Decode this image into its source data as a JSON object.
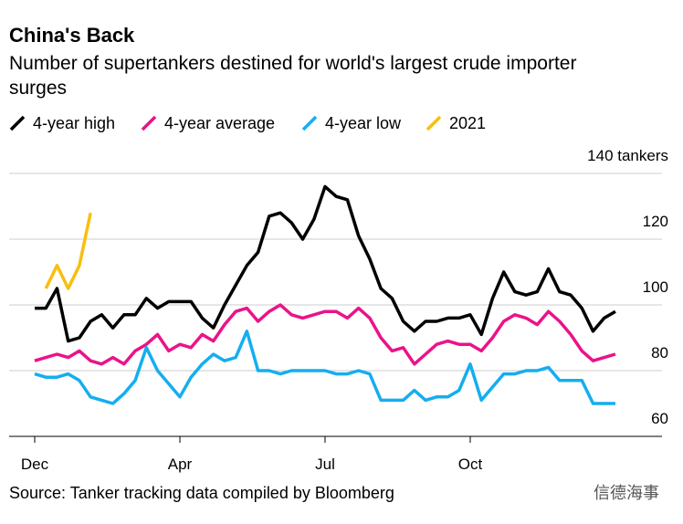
{
  "chart_data": {
    "type": "line",
    "title": "China's Back",
    "subtitle": [
      "Number of supertankers destined for world's largest crude importer",
      "surges"
    ],
    "source": "Source: Tanker tracking data compiled by Bloomberg",
    "watermark": "信德海事",
    "categories": [
      "Dec",
      null,
      null,
      null,
      null,
      null,
      null,
      null,
      null,
      null,
      null,
      null,
      null,
      "Apr",
      null,
      null,
      null,
      null,
      null,
      null,
      null,
      null,
      null,
      null,
      null,
      null,
      "Jul",
      null,
      null,
      null,
      null,
      null,
      null,
      null,
      null,
      null,
      null,
      null,
      null,
      "Oct",
      null,
      null,
      null,
      null,
      null,
      null,
      null,
      null,
      null,
      null,
      null,
      null,
      null
    ],
    "series": [
      {
        "name": "4-year high",
        "color": "#000000",
        "values": [
          99,
          99,
          105,
          89,
          90,
          95,
          97,
          93,
          97,
          97,
          102,
          99,
          101,
          101,
          101,
          96,
          93,
          100,
          106,
          112,
          116,
          127,
          128,
          125,
          120,
          126,
          136,
          133,
          132,
          121,
          114,
          105,
          102,
          95,
          92,
          95,
          95,
          96,
          96,
          97,
          91,
          102,
          110,
          104,
          103,
          104,
          111,
          104,
          103,
          99,
          92,
          96,
          98
        ]
      },
      {
        "name": "4-year average",
        "color": "#ea138a",
        "values": [
          83,
          84,
          85,
          84,
          86,
          83,
          82,
          84,
          82,
          86,
          88,
          91,
          86,
          88,
          87,
          91,
          89,
          94,
          98,
          99,
          95,
          98,
          100,
          97,
          96,
          97,
          98,
          98,
          96,
          99,
          96,
          90,
          86,
          87,
          82,
          85,
          88,
          89,
          88,
          88,
          86,
          90,
          95,
          97,
          96,
          94,
          98,
          95,
          91,
          86,
          83,
          84,
          85
        ]
      },
      {
        "name": "4-year low",
        "color": "#14aef0",
        "values": [
          79,
          78,
          78,
          79,
          77,
          72,
          71,
          70,
          73,
          77,
          87,
          80,
          76,
          72,
          78,
          82,
          85,
          83,
          84,
          92,
          80,
          80,
          79,
          80,
          80,
          80,
          80,
          79,
          79,
          80,
          79,
          71,
          71,
          71,
          74,
          71,
          72,
          72,
          74,
          82,
          71,
          75,
          79,
          79,
          80,
          80,
          81,
          77,
          77,
          77,
          70,
          70,
          70
        ]
      },
      {
        "name": "2021",
        "color": "#f8bf10",
        "values": [
          null,
          105,
          112,
          105,
          112,
          128,
          null,
          null,
          null,
          null,
          null,
          null,
          null,
          null,
          null,
          null,
          null,
          null,
          null,
          null,
          null,
          null,
          null,
          null,
          null,
          null,
          null,
          null,
          null,
          null,
          null,
          null,
          null,
          null,
          null,
          null,
          null,
          null,
          null,
          null,
          null,
          null,
          null,
          null,
          null,
          null,
          null,
          null,
          null,
          null,
          null,
          null,
          null
        ]
      }
    ],
    "ylim": [
      60,
      140
    ],
    "yticks": [
      60,
      80,
      100,
      120,
      {
        "value": 140,
        "label": "140 tankers"
      }
    ],
    "grid": true
  }
}
